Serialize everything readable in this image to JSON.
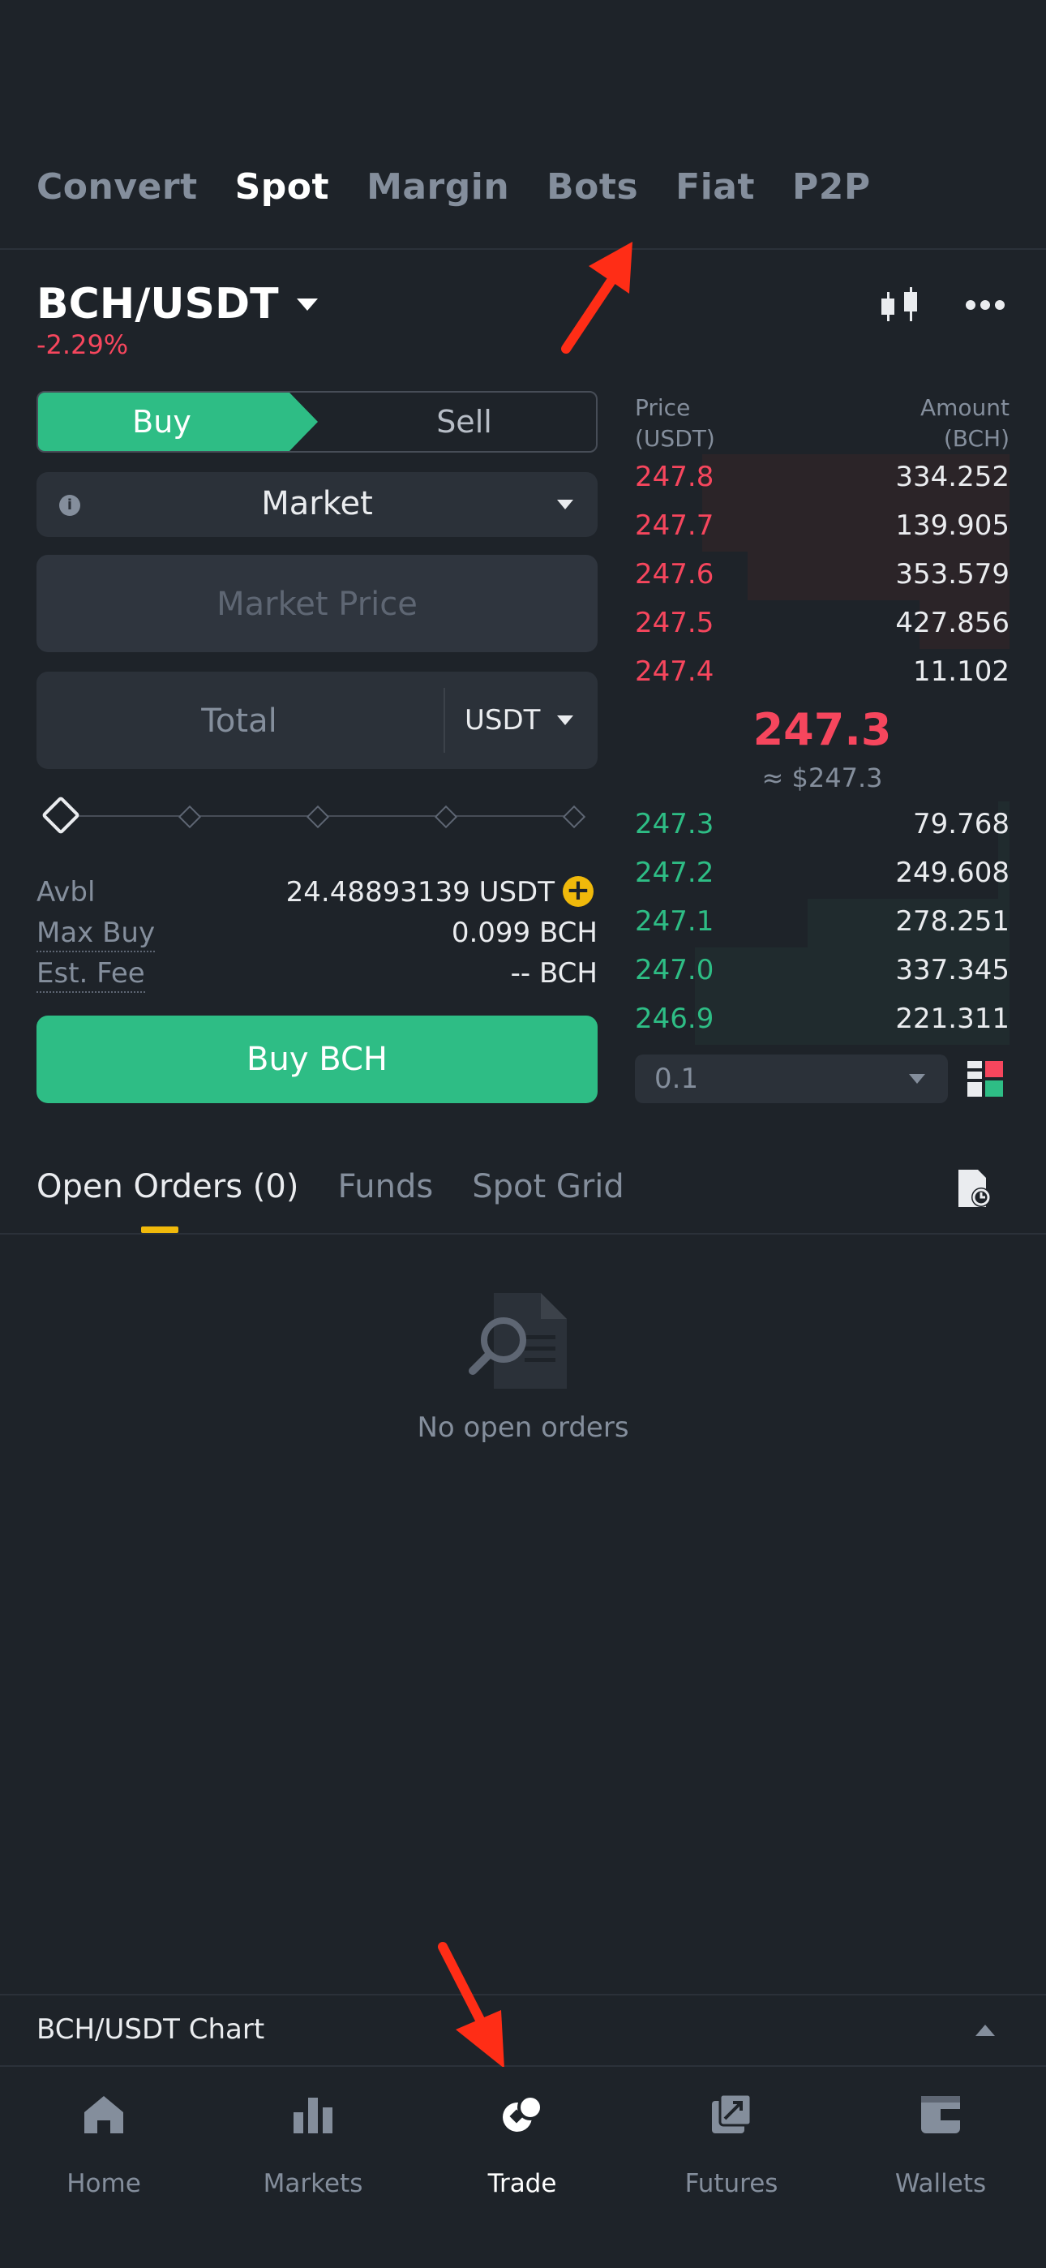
{
  "top_tabs": [
    {
      "label": "Convert",
      "active": false
    },
    {
      "label": "Spot",
      "active": true
    },
    {
      "label": "Margin",
      "active": false
    },
    {
      "label": "Bots",
      "active": false
    },
    {
      "label": "Fiat",
      "active": false
    },
    {
      "label": "P2P",
      "active": false
    }
  ],
  "pair": {
    "symbol": "BCH/USDT",
    "change": "-2.29%"
  },
  "order_form": {
    "buy_label": "Buy",
    "sell_label": "Sell",
    "order_type": "Market",
    "price_placeholder": "Market Price",
    "total_placeholder": "Total",
    "total_unit": "USDT",
    "slider_percent": 0,
    "avbl_label": "Avbl",
    "avbl_value": "24.48893139 USDT",
    "max_buy_label": "Max Buy",
    "max_buy_value": "0.099 BCH",
    "fee_label": "Est. Fee",
    "fee_value": "-- BCH",
    "submit_label": "Buy BCH"
  },
  "order_book": {
    "price_header": "Price",
    "price_unit": "(USDT)",
    "amount_header": "Amount",
    "amount_unit": "(BCH)",
    "asks": [
      {
        "price": "247.8",
        "amount": "334.252",
        "depth": 0.82
      },
      {
        "price": "247.7",
        "amount": "139.905",
        "depth": 0.82
      },
      {
        "price": "247.6",
        "amount": "353.579",
        "depth": 0.7
      },
      {
        "price": "247.5",
        "amount": "427.856",
        "depth": 0.24
      },
      {
        "price": "247.4",
        "amount": "11.102",
        "depth": 0.0
      }
    ],
    "mid_price": "247.3",
    "mid_usd": "≈ $247.3",
    "bids": [
      {
        "price": "247.3",
        "amount": "79.768",
        "depth": 0.03
      },
      {
        "price": "247.2",
        "amount": "249.608",
        "depth": 0.03
      },
      {
        "price": "247.1",
        "amount": "278.251",
        "depth": 0.54
      },
      {
        "price": "247.0",
        "amount": "337.345",
        "depth": 0.84
      },
      {
        "price": "246.9",
        "amount": "221.311",
        "depth": 0.84
      }
    ],
    "precision": "0.1"
  },
  "orders_tabs": [
    {
      "label": "Open Orders (0)",
      "active": true
    },
    {
      "label": "Funds",
      "active": false
    },
    {
      "label": "Spot Grid",
      "active": false
    }
  ],
  "empty_state": "No open orders",
  "chart_bar_label": "BCH/USDT Chart",
  "bottom_nav": [
    {
      "label": "Home",
      "icon": "home-icon",
      "active": false
    },
    {
      "label": "Markets",
      "icon": "markets-icon",
      "active": false
    },
    {
      "label": "Trade",
      "icon": "trade-icon",
      "active": true
    },
    {
      "label": "Futures",
      "icon": "futures-icon",
      "active": false
    },
    {
      "label": "Wallets",
      "icon": "wallets-icon",
      "active": false
    }
  ],
  "colors": {
    "background": "#1e2329",
    "buy": "#2ebd85",
    "sell": "#f6465d",
    "accent": "#f0b90b",
    "annotation": "#ff2d16"
  }
}
